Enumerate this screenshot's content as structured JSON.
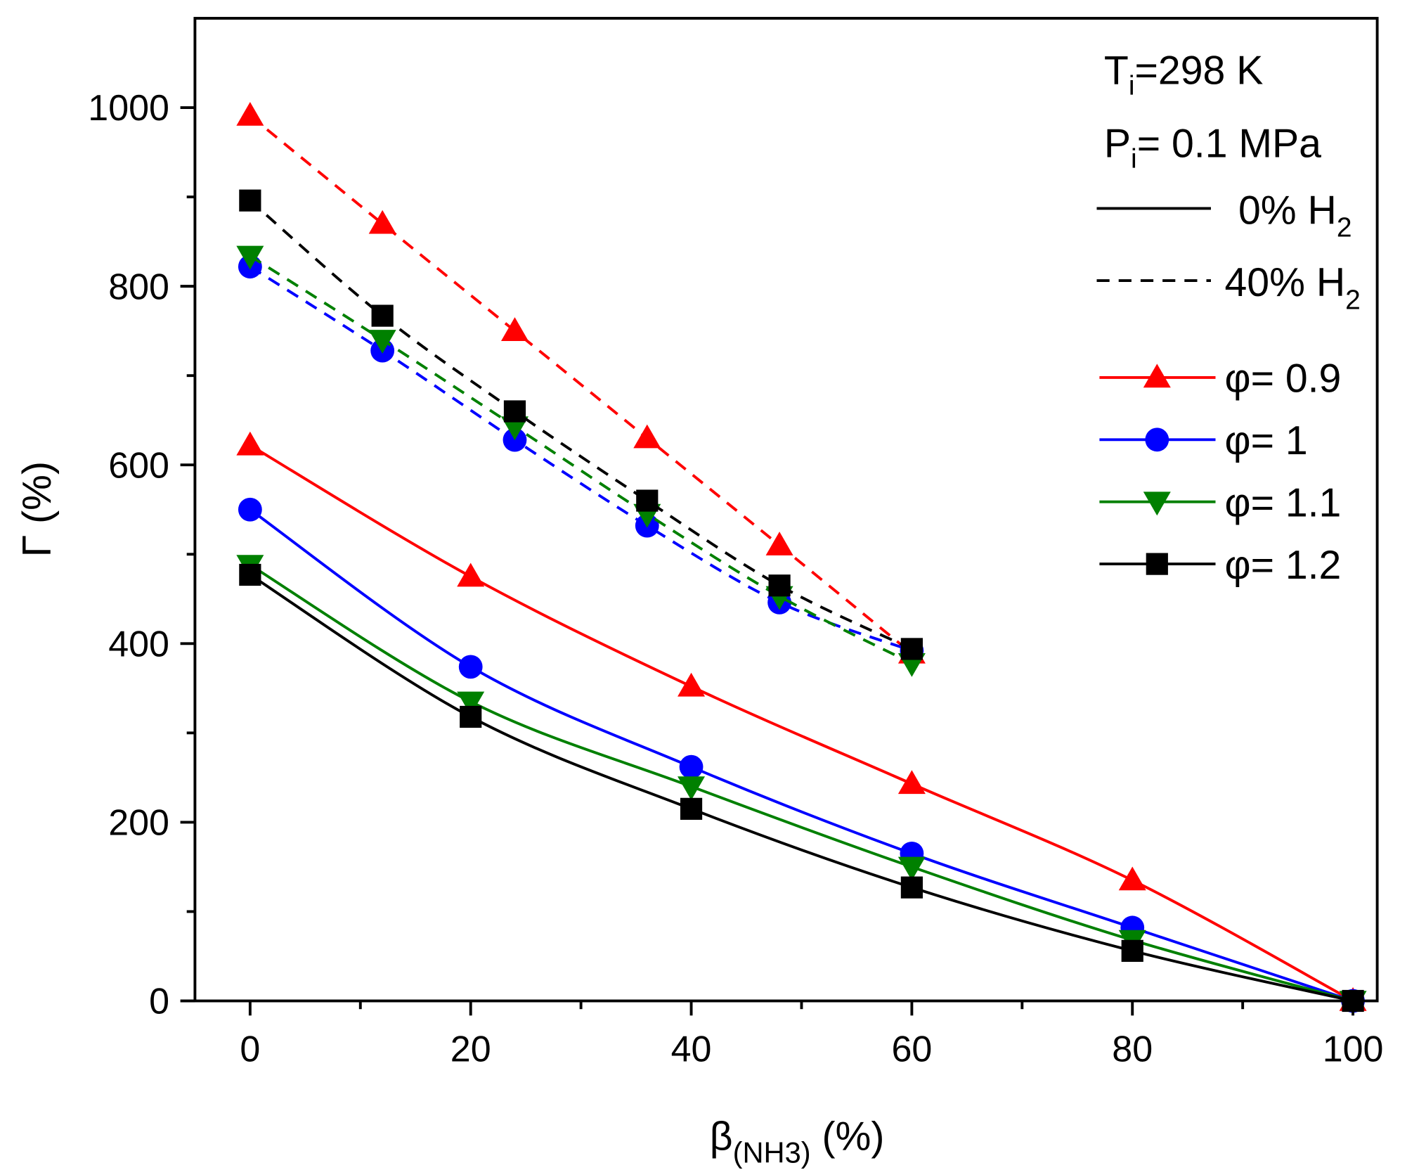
{
  "chart_data": {
    "type": "line",
    "title": "",
    "xlabel": {
      "main": "β",
      "sub": "(NH3)",
      "rest": " (%)"
    },
    "ylabel": "Γ (%)",
    "xlim": [
      -5,
      102.2
    ],
    "ylim": [
      0,
      1100
    ],
    "x_ticks": [
      0,
      20,
      40,
      60,
      80,
      100
    ],
    "x_tick_labels": [
      "0",
      "20",
      "40",
      "60",
      "80",
      "100"
    ],
    "y_ticks": [
      0,
      200,
      400,
      600,
      800,
      1000
    ],
    "y_tick_labels": [
      "0",
      "200",
      "400",
      "600",
      "800",
      "1000"
    ],
    "grid": false,
    "legend_position": "top-right",
    "annotations": {
      "temperature": {
        "main": "T",
        "sub": "i",
        "rest": "=298 K"
      },
      "pressure": {
        "main": "P",
        "sub": "i",
        "rest": "= 0.1 MPa"
      }
    },
    "line_styles": [
      {
        "label": "0% H",
        "sub": "2",
        "style": "solid"
      },
      {
        "label": "40% H",
        "sub": "2",
        "style": "dashed"
      }
    ],
    "series": [
      {
        "name": "φ= 0.9",
        "color": "#ff0000",
        "marker": "triangle-up",
        "h2": "0%",
        "x": [
          0,
          20,
          40,
          60,
          80,
          100
        ],
        "values": [
          622,
          475,
          352,
          243,
          135,
          0
        ]
      },
      {
        "name": "φ= 1",
        "color": "#0000ff",
        "marker": "circle",
        "h2": "0%",
        "x": [
          0,
          20,
          40,
          60,
          80,
          100
        ],
        "values": [
          550,
          374,
          262,
          165,
          82,
          0
        ]
      },
      {
        "name": "φ= 1.1",
        "color": "#008000",
        "marker": "triangle-down",
        "h2": "0%",
        "x": [
          0,
          20,
          40,
          60,
          80,
          100
        ],
        "values": [
          488,
          335,
          240,
          150,
          68,
          0
        ]
      },
      {
        "name": "φ= 1.2",
        "color": "#000000",
        "marker": "square",
        "h2": "0%",
        "x": [
          0,
          20,
          40,
          60,
          80,
          100
        ],
        "values": [
          477,
          318,
          215,
          127,
          56,
          0
        ]
      },
      {
        "name": "φ= 0.9",
        "color": "#ff0000",
        "marker": "triangle-up",
        "h2": "40%",
        "x": [
          0,
          12,
          24,
          36,
          48,
          60
        ],
        "values": [
          991,
          870,
          750,
          630,
          510,
          389
        ]
      },
      {
        "name": "φ= 1",
        "color": "#0000ff",
        "marker": "circle",
        "h2": "40%",
        "x": [
          0,
          12,
          24,
          36,
          48,
          60
        ],
        "values": [
          822,
          728,
          628,
          532,
          446,
          392
        ]
      },
      {
        "name": "φ= 1.1",
        "color": "#008000",
        "marker": "triangle-down",
        "h2": "40%",
        "x": [
          0,
          12,
          24,
          36,
          48,
          60
        ],
        "values": [
          834,
          740,
          643,
          545,
          453,
          378
        ]
      },
      {
        "name": "φ= 1.2",
        "color": "#000000",
        "marker": "square",
        "h2": "40%",
        "x": [
          0,
          12,
          24,
          36,
          48,
          60
        ],
        "values": [
          896,
          767,
          660,
          560,
          465,
          394
        ]
      }
    ],
    "legend": [
      {
        "label": "φ= 0.9",
        "color": "#ff0000",
        "marker": "triangle-up"
      },
      {
        "label": "φ= 1",
        "color": "#0000ff",
        "marker": "circle"
      },
      {
        "label": "φ= 1.1",
        "color": "#008000",
        "marker": "triangle-down"
      },
      {
        "label": "φ= 1.2",
        "color": "#000000",
        "marker": "square"
      }
    ]
  }
}
